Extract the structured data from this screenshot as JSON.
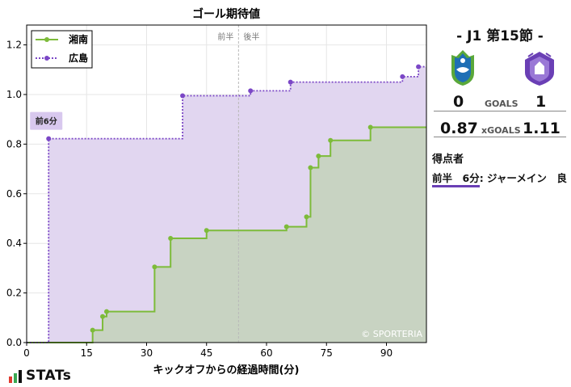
{
  "chart_data": {
    "type": "line",
    "step": true,
    "title": "ゴール期待値",
    "xlabel": "キックオフからの経過時間(分)",
    "ylabel": "",
    "xlim": [
      0,
      100
    ],
    "ylim": [
      0,
      1.28
    ],
    "xticks": [
      0,
      15,
      30,
      45,
      60,
      75,
      90
    ],
    "yticks": [
      0.0,
      0.2,
      0.4,
      0.6,
      0.8,
      1.0,
      1.2
    ],
    "grid": true,
    "legend_position": "top-left",
    "half_line": {
      "x": 53,
      "labels": [
        "前半",
        "後半"
      ]
    },
    "watermark": "© SPORTERIA",
    "series": [
      {
        "name": "湘南",
        "color": "#7dbb3a",
        "fill": "#c8d3c2",
        "linestyle": "solid",
        "points": [
          [
            0,
            0
          ],
          [
            16.5,
            0
          ],
          [
            16.5,
            0.05
          ],
          [
            19,
            0.05
          ],
          [
            19,
            0.105
          ],
          [
            20,
            0.105
          ],
          [
            20,
            0.125
          ],
          [
            32,
            0.125
          ],
          [
            32,
            0.305
          ],
          [
            36,
            0.305
          ],
          [
            36,
            0.42
          ],
          [
            45,
            0.42
          ],
          [
            45,
            0.452
          ],
          [
            65,
            0.452
          ],
          [
            65,
            0.467
          ],
          [
            70,
            0.467
          ],
          [
            70,
            0.507
          ],
          [
            71,
            0.507
          ],
          [
            71,
            0.705
          ],
          [
            73,
            0.705
          ],
          [
            73,
            0.752
          ],
          [
            76,
            0.752
          ],
          [
            76,
            0.815
          ],
          [
            86,
            0.815
          ],
          [
            86,
            0.868
          ],
          [
            100,
            0.868
          ]
        ]
      },
      {
        "name": "広島",
        "color": "#7b47c6",
        "fill": "#e1d6f0",
        "linestyle": "dotted",
        "points": [
          [
            0,
            0
          ],
          [
            5.5,
            0
          ],
          [
            5.5,
            0.822
          ],
          [
            39,
            0.822
          ],
          [
            39,
            0.995
          ],
          [
            56,
            0.995
          ],
          [
            56,
            1.015
          ],
          [
            66,
            1.015
          ],
          [
            66,
            1.05
          ],
          [
            94,
            1.05
          ],
          [
            94,
            1.072
          ],
          [
            98,
            1.072
          ],
          [
            98,
            1.112
          ],
          [
            100,
            1.112
          ]
        ]
      }
    ],
    "annotations": [
      {
        "text": "前6分",
        "x": 5.5,
        "y": 0.822,
        "color": "#d8c8ee"
      }
    ]
  },
  "match": {
    "title": "- J1 第15節 -",
    "home_team": "湘南",
    "away_team": "広島",
    "home_goals": "0",
    "away_goals": "1",
    "goals_label": "GOALS",
    "home_xg": "0.87",
    "away_xg": "1.11",
    "xg_label": "xGOALS",
    "home_crest_icon": "shonan-bellmare-crest-icon",
    "away_crest_icon": "sanfrecce-hiroshima-crest-icon"
  },
  "scorers": {
    "title": "得点者",
    "items": [
      {
        "time": "前半　6分",
        "text": ": ジャーメイン　良"
      }
    ]
  },
  "brand": {
    "logo_icon": "stats-bar-icon",
    "name": "STATs"
  }
}
